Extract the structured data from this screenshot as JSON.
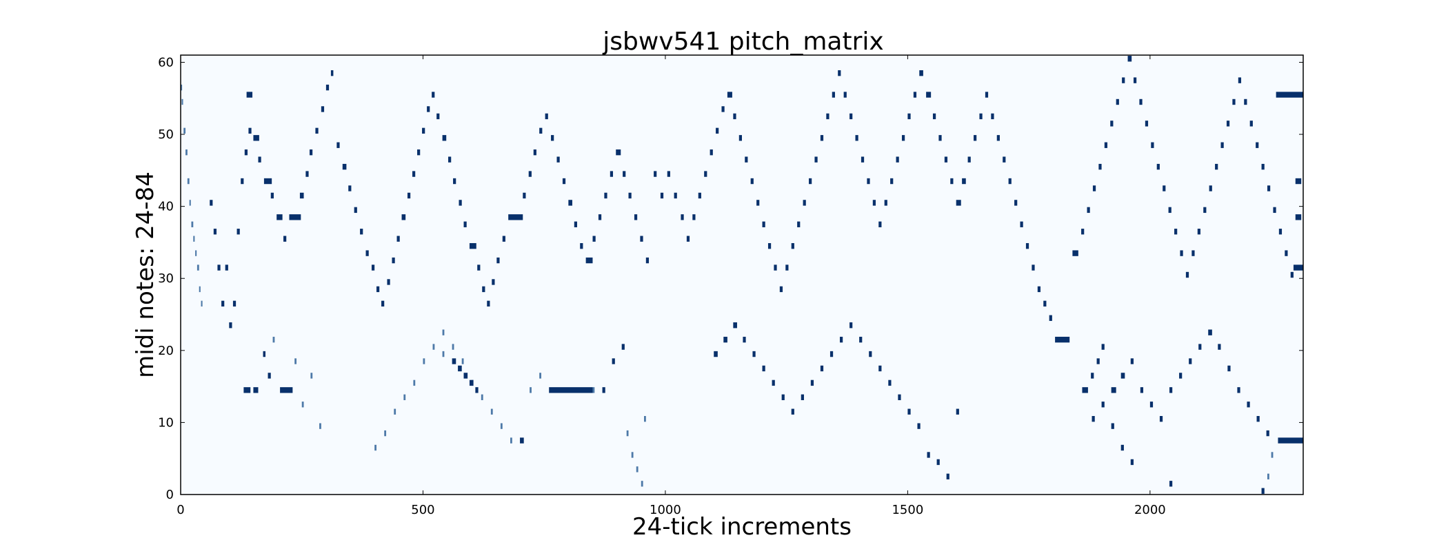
{
  "chart_data": {
    "type": "heatmap",
    "title": "jsbwv541 pitch_matrix",
    "xlabel": "24-tick increments",
    "ylabel": "midi notes: 24-84",
    "xlim": [
      0,
      2316
    ],
    "ylim": [
      0,
      61
    ],
    "xticks": [
      0,
      500,
      1000,
      1500,
      2000
    ],
    "yticks": [
      0,
      10,
      20,
      30,
      40,
      50,
      60
    ],
    "colormap": "Blues",
    "background_color": "#f7fbff",
    "note_color": "#08306b",
    "mid_color": "#4d79a8",
    "grid": false,
    "legend": "none",
    "notes": [
      [
        0,
        56,
        3
      ],
      [
        2,
        54,
        3
      ],
      [
        6,
        50,
        4
      ],
      [
        10,
        47,
        4
      ],
      [
        14,
        43,
        4
      ],
      [
        18,
        40,
        3
      ],
      [
        22,
        37,
        4
      ],
      [
        26,
        35,
        3
      ],
      [
        30,
        33,
        3
      ],
      [
        34,
        31,
        4
      ],
      [
        38,
        28,
        3
      ],
      [
        42,
        26,
        3
      ],
      [
        60,
        40,
        6
      ],
      [
        68,
        36,
        6
      ],
      [
        76,
        31,
        6
      ],
      [
        84,
        26,
        6
      ],
      [
        92,
        31,
        6
      ],
      [
        100,
        23,
        6
      ],
      [
        108,
        26,
        6
      ],
      [
        116,
        36,
        6
      ],
      [
        124,
        43,
        6
      ],
      [
        132,
        47,
        6
      ],
      [
        140,
        50,
        6
      ],
      [
        130,
        14,
        14
      ],
      [
        150,
        14,
        10
      ],
      [
        170,
        19,
        5
      ],
      [
        180,
        16,
        6
      ],
      [
        190,
        21,
        4
      ],
      [
        205,
        14,
        26
      ],
      [
        235,
        18,
        4
      ],
      [
        250,
        12,
        4
      ],
      [
        268,
        16,
        4
      ],
      [
        286,
        9,
        4
      ],
      [
        136,
        55,
        12
      ],
      [
        150,
        49,
        12
      ],
      [
        160,
        46,
        6
      ],
      [
        172,
        43,
        16
      ],
      [
        186,
        41,
        6
      ],
      [
        198,
        38,
        12
      ],
      [
        212,
        35,
        6
      ],
      [
        224,
        38,
        24
      ],
      [
        246,
        41,
        8
      ],
      [
        258,
        44,
        6
      ],
      [
        266,
        47,
        6
      ],
      [
        278,
        50,
        6
      ],
      [
        290,
        53,
        6
      ],
      [
        300,
        56,
        6
      ],
      [
        310,
        58,
        5
      ],
      [
        322,
        48,
        6
      ],
      [
        334,
        45,
        8
      ],
      [
        346,
        42,
        6
      ],
      [
        358,
        39,
        6
      ],
      [
        370,
        36,
        6
      ],
      [
        382,
        33,
        6
      ],
      [
        394,
        31,
        6
      ],
      [
        404,
        28,
        6
      ],
      [
        414,
        26,
        6
      ],
      [
        426,
        29,
        6
      ],
      [
        436,
        32,
        6
      ],
      [
        446,
        35,
        6
      ],
      [
        456,
        38,
        8
      ],
      [
        468,
        41,
        6
      ],
      [
        478,
        44,
        6
      ],
      [
        488,
        47,
        6
      ],
      [
        498,
        50,
        6
      ],
      [
        508,
        53,
        6
      ],
      [
        518,
        55,
        6
      ],
      [
        528,
        52,
        6
      ],
      [
        540,
        49,
        8
      ],
      [
        552,
        46,
        6
      ],
      [
        562,
        43,
        6
      ],
      [
        574,
        40,
        6
      ],
      [
        584,
        37,
        6
      ],
      [
        596,
        34,
        14
      ],
      [
        612,
        31,
        6
      ],
      [
        622,
        28,
        6
      ],
      [
        632,
        26,
        6
      ],
      [
        642,
        29,
        6
      ],
      [
        652,
        32,
        6
      ],
      [
        664,
        35,
        6
      ],
      [
        676,
        38,
        30
      ],
      [
        706,
        41,
        6
      ],
      [
        718,
        44,
        6
      ],
      [
        728,
        47,
        6
      ],
      [
        740,
        50,
        6
      ],
      [
        752,
        52,
        6
      ],
      [
        764,
        49,
        6
      ],
      [
        776,
        46,
        6
      ],
      [
        788,
        43,
        6
      ],
      [
        800,
        40,
        8
      ],
      [
        812,
        37,
        6
      ],
      [
        824,
        34,
        6
      ],
      [
        836,
        32,
        14
      ],
      [
        850,
        35,
        6
      ],
      [
        862,
        38,
        6
      ],
      [
        874,
        41,
        6
      ],
      [
        886,
        44,
        6
      ],
      [
        898,
        47,
        10
      ],
      [
        912,
        44,
        6
      ],
      [
        924,
        41,
        6
      ],
      [
        936,
        38,
        6
      ],
      [
        948,
        35,
        6
      ],
      [
        960,
        32,
        6
      ],
      [
        976,
        44,
        6
      ],
      [
        990,
        41,
        6
      ],
      [
        1004,
        44,
        6
      ],
      [
        1018,
        41,
        6
      ],
      [
        1032,
        38,
        6
      ],
      [
        1044,
        35,
        6
      ],
      [
        1056,
        38,
        6
      ],
      [
        1068,
        41,
        6
      ],
      [
        1080,
        44,
        6
      ],
      [
        1092,
        47,
        6
      ],
      [
        1104,
        50,
        6
      ],
      [
        1116,
        53,
        6
      ],
      [
        1128,
        55,
        10
      ],
      [
        1140,
        52,
        6
      ],
      [
        1152,
        49,
        6
      ],
      [
        1164,
        46,
        6
      ],
      [
        1176,
        43,
        6
      ],
      [
        1188,
        40,
        6
      ],
      [
        1200,
        37,
        6
      ],
      [
        1212,
        34,
        6
      ],
      [
        1224,
        31,
        6
      ],
      [
        1236,
        28,
        6
      ],
      [
        1248,
        31,
        6
      ],
      [
        1260,
        34,
        6
      ],
      [
        1272,
        37,
        6
      ],
      [
        1284,
        40,
        6
      ],
      [
        1296,
        43,
        6
      ],
      [
        1308,
        46,
        6
      ],
      [
        1320,
        49,
        6
      ],
      [
        1332,
        52,
        6
      ],
      [
        1344,
        55,
        6
      ],
      [
        1356,
        58,
        6
      ],
      [
        1368,
        55,
        6
      ],
      [
        1380,
        52,
        6
      ],
      [
        1392,
        49,
        6
      ],
      [
        1404,
        46,
        6
      ],
      [
        1416,
        43,
        6
      ],
      [
        1428,
        40,
        6
      ],
      [
        1440,
        37,
        6
      ],
      [
        1452,
        40,
        6
      ],
      [
        1464,
        43,
        6
      ],
      [
        1476,
        46,
        6
      ],
      [
        1488,
        49,
        6
      ],
      [
        1500,
        52,
        6
      ],
      [
        1512,
        55,
        6
      ],
      [
        1524,
        58,
        8
      ],
      [
        1538,
        55,
        10
      ],
      [
        1552,
        52,
        6
      ],
      [
        1564,
        49,
        6
      ],
      [
        1576,
        46,
        6
      ],
      [
        1588,
        43,
        6
      ],
      [
        1600,
        40,
        10
      ],
      [
        1612,
        43,
        8
      ],
      [
        1624,
        46,
        6
      ],
      [
        1636,
        49,
        6
      ],
      [
        1648,
        52,
        6
      ],
      [
        1660,
        55,
        6
      ],
      [
        1672,
        52,
        6
      ],
      [
        1684,
        49,
        6
      ],
      [
        1696,
        46,
        6
      ],
      [
        1708,
        43,
        6
      ],
      [
        1720,
        40,
        6
      ],
      [
        1732,
        37,
        6
      ],
      [
        1744,
        34,
        6
      ],
      [
        1756,
        31,
        6
      ],
      [
        1768,
        28,
        6
      ],
      [
        1780,
        26,
        6
      ],
      [
        1792,
        24,
        6
      ],
      [
        1804,
        21,
        30
      ],
      [
        1840,
        33,
        12
      ],
      [
        1858,
        36,
        6
      ],
      [
        1870,
        39,
        6
      ],
      [
        1882,
        42,
        6
      ],
      [
        1894,
        45,
        6
      ],
      [
        1906,
        48,
        6
      ],
      [
        1918,
        51,
        6
      ],
      [
        1930,
        54,
        6
      ],
      [
        1942,
        57,
        6
      ],
      [
        1954,
        60,
        8
      ],
      [
        1966,
        57,
        6
      ],
      [
        1978,
        54,
        6
      ],
      [
        1990,
        51,
        6
      ],
      [
        2002,
        48,
        6
      ],
      [
        2014,
        45,
        6
      ],
      [
        2026,
        42,
        6
      ],
      [
        2038,
        39,
        6
      ],
      [
        2050,
        36,
        6
      ],
      [
        2062,
        33,
        6
      ],
      [
        2074,
        30,
        6
      ],
      [
        2086,
        33,
        6
      ],
      [
        2098,
        36,
        6
      ],
      [
        2110,
        39,
        6
      ],
      [
        2122,
        42,
        6
      ],
      [
        2134,
        45,
        6
      ],
      [
        2146,
        48,
        6
      ],
      [
        2158,
        51,
        6
      ],
      [
        2170,
        54,
        6
      ],
      [
        2182,
        57,
        6
      ],
      [
        2194,
        54,
        6
      ],
      [
        2206,
        51,
        6
      ],
      [
        2218,
        48,
        6
      ],
      [
        2230,
        45,
        6
      ],
      [
        2242,
        42,
        6
      ],
      [
        2254,
        39,
        6
      ],
      [
        2266,
        36,
        6
      ],
      [
        2278,
        33,
        6
      ],
      [
        2290,
        30,
        6
      ],
      [
        2300,
        38,
        12
      ],
      [
        2300,
        43,
        12
      ],
      [
        2296,
        31,
        20
      ],
      [
        2260,
        55,
        56
      ],
      [
        2264,
        7,
        52
      ],
      [
        2230,
        0,
        6
      ],
      [
        2242,
        2,
        4
      ],
      [
        2250,
        5,
        4
      ],
      [
        400,
        6,
        4
      ],
      [
        420,
        8,
        4
      ],
      [
        440,
        11,
        4
      ],
      [
        460,
        13,
        4
      ],
      [
        480,
        15,
        4
      ],
      [
        500,
        18,
        4
      ],
      [
        520,
        20,
        4
      ],
      [
        540,
        22,
        4
      ],
      [
        560,
        20,
        4
      ],
      [
        580,
        18,
        4
      ],
      [
        600,
        15,
        4
      ],
      [
        620,
        13,
        4
      ],
      [
        640,
        11,
        4
      ],
      [
        660,
        9,
        4
      ],
      [
        680,
        7,
        4
      ],
      [
        700,
        7,
        8
      ],
      [
        720,
        14,
        4
      ],
      [
        740,
        16,
        4
      ],
      [
        760,
        14,
        90
      ],
      [
        850,
        14,
        4
      ],
      [
        870,
        14,
        6
      ],
      [
        890,
        18,
        6
      ],
      [
        910,
        20,
        6
      ],
      [
        920,
        8,
        4
      ],
      [
        930,
        5,
        4
      ],
      [
        940,
        3,
        4
      ],
      [
        950,
        1,
        4
      ],
      [
        956,
        10,
        4
      ],
      [
        540,
        19,
        4
      ],
      [
        560,
        18,
        8
      ],
      [
        572,
        17,
        8
      ],
      [
        584,
        16,
        8
      ],
      [
        596,
        15,
        8
      ],
      [
        608,
        14,
        6
      ],
      [
        1100,
        19,
        8
      ],
      [
        1120,
        21,
        8
      ],
      [
        1140,
        23,
        8
      ],
      [
        1160,
        21,
        6
      ],
      [
        1180,
        19,
        6
      ],
      [
        1200,
        17,
        6
      ],
      [
        1220,
        15,
        6
      ],
      [
        1240,
        13,
        6
      ],
      [
        1260,
        11,
        6
      ],
      [
        1280,
        13,
        6
      ],
      [
        1300,
        15,
        6
      ],
      [
        1320,
        17,
        6
      ],
      [
        1340,
        19,
        6
      ],
      [
        1360,
        21,
        6
      ],
      [
        1380,
        23,
        6
      ],
      [
        1400,
        21,
        6
      ],
      [
        1420,
        19,
        6
      ],
      [
        1440,
        17,
        6
      ],
      [
        1460,
        15,
        6
      ],
      [
        1480,
        13,
        6
      ],
      [
        1500,
        11,
        6
      ],
      [
        1520,
        9,
        6
      ],
      [
        1540,
        5,
        6
      ],
      [
        1560,
        4,
        6
      ],
      [
        1580,
        2,
        6
      ],
      [
        1600,
        11,
        6
      ],
      [
        1920,
        14,
        10
      ],
      [
        1940,
        16,
        8
      ],
      [
        1960,
        18,
        6
      ],
      [
        1980,
        14,
        6
      ],
      [
        2000,
        12,
        6
      ],
      [
        2020,
        10,
        6
      ],
      [
        2040,
        14,
        6
      ],
      [
        2060,
        16,
        6
      ],
      [
        2080,
        18,
        6
      ],
      [
        2100,
        20,
        6
      ],
      [
        2120,
        22,
        8
      ],
      [
        2140,
        20,
        6
      ],
      [
        2160,
        17,
        6
      ],
      [
        2180,
        14,
        6
      ],
      [
        2200,
        12,
        6
      ],
      [
        2220,
        10,
        6
      ],
      [
        2240,
        8,
        6
      ],
      [
        2040,
        1,
        6
      ],
      [
        1860,
        14,
        12
      ],
      [
        1878,
        16,
        6
      ],
      [
        1890,
        18,
        6
      ],
      [
        1900,
        20,
        6
      ],
      [
        1880,
        10,
        6
      ],
      [
        1900,
        12,
        6
      ],
      [
        1920,
        9,
        6
      ],
      [
        1940,
        6,
        6
      ],
      [
        1960,
        4,
        6
      ]
    ]
  }
}
